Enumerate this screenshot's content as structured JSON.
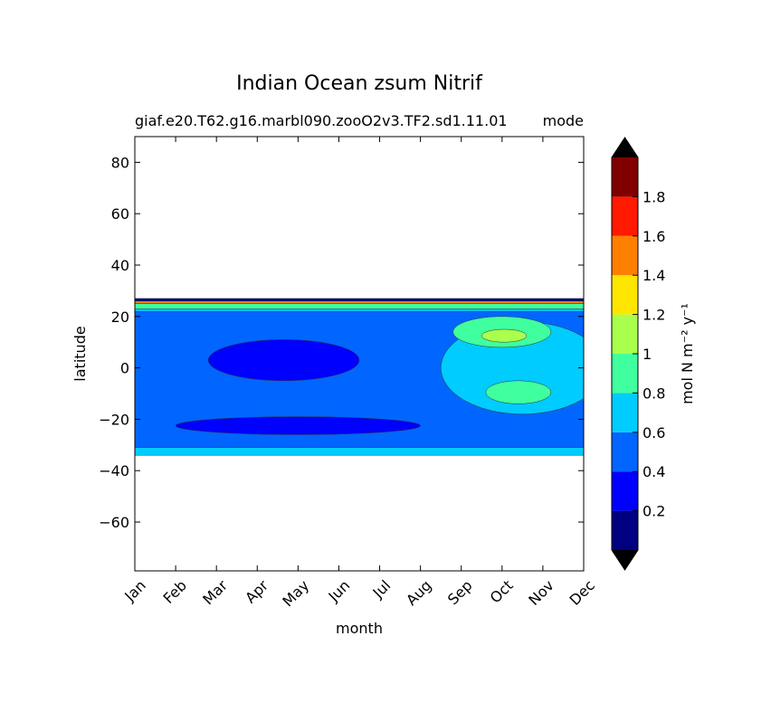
{
  "chart_data": {
    "type": "heatmap",
    "title": "Indian Ocean zsum Nitrif",
    "subtitle_left": "giaf.e20.T62.g16.marbl090.zooO2v3.TF2.sd1.11.01",
    "subtitle_right": "mode",
    "xlabel": "month",
    "ylabel": "latitude",
    "x_ticks": [
      "Jan",
      "Feb",
      "Mar",
      "Apr",
      "May",
      "Jun",
      "Jul",
      "Aug",
      "Sep",
      "Oct",
      "Nov",
      "Dec"
    ],
    "y_ticks": [
      "80",
      "60",
      "40",
      "20",
      "0",
      "−20",
      "−40",
      "−60"
    ],
    "ylim": [
      -79,
      90
    ],
    "data_lat_range": [
      -34,
      27
    ],
    "colorbar": {
      "label": "mol N m⁻² y⁻¹",
      "ticks": [
        "0.2",
        "0.4",
        "0.6",
        "0.8",
        "1",
        "1.2",
        "1.4",
        "1.6",
        "1.8"
      ],
      "levels": [
        0,
        0.2,
        0.4,
        0.6,
        0.8,
        1.0,
        1.2,
        1.4,
        1.6,
        1.8,
        2.0
      ],
      "colors": [
        "#000080",
        "#0000ff",
        "#0066ff",
        "#00ccff",
        "#40ff9e",
        "#aaff4d",
        "#ffe600",
        "#ff7f00",
        "#ff1a00",
        "#800000"
      ],
      "extend": "both"
    },
    "regions": [
      {
        "level": 0.5,
        "desc": "background band 0.4-0.6",
        "lat": [
          -34,
          26
        ]
      },
      {
        "level": 0.3,
        "desc": "equatorial minimum",
        "month": [
          1.8,
          5.5
        ],
        "lat": [
          -5,
          11
        ]
      },
      {
        "level": 0.3,
        "desc": "southern minimum",
        "month": [
          1,
          7
        ],
        "lat": [
          -26,
          -19
        ]
      },
      {
        "level": 0.7,
        "desc": "late-year plateau",
        "month": [
          7.5,
          11.5
        ],
        "lat": [
          -18,
          18
        ]
      },
      {
        "level": 0.9,
        "desc": "southern maximum",
        "month": [
          8.6,
          10.2
        ],
        "lat": [
          -14,
          -5
        ]
      },
      {
        "level": 0.9,
        "desc": "northern maximum",
        "month": [
          7.8,
          10.2
        ],
        "lat": [
          8,
          20
        ]
      },
      {
        "level": 1.1,
        "desc": "northern peak",
        "month": [
          8.5,
          9.6
        ],
        "lat": [
          10,
          15
        ]
      }
    ]
  }
}
